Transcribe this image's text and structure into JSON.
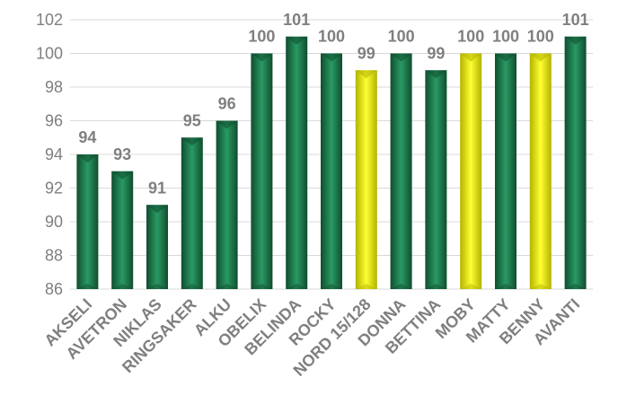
{
  "chart_data": {
    "type": "bar",
    "title": "",
    "xlabel": "",
    "ylabel": "",
    "categories": [
      "AKSELI",
      "AVETRON",
      "NIKLAS",
      "RINGSAKER",
      "ALKU",
      "OBELIX",
      "BELINDA",
      "ROCKY",
      "NORD 15/128",
      "DONNA",
      "BETTINA",
      "MOBY",
      "MATTY",
      "BENNY",
      "AVANTI"
    ],
    "values": [
      94,
      93,
      91,
      95,
      96,
      100,
      101,
      100,
      99,
      100,
      99,
      100,
      100,
      100,
      101
    ],
    "highlight": [
      false,
      false,
      false,
      false,
      false,
      false,
      false,
      false,
      true,
      false,
      false,
      true,
      false,
      true,
      false
    ],
    "ylim": [
      86,
      102
    ],
    "yticks": [
      86,
      88,
      90,
      92,
      94,
      96,
      98,
      100,
      102
    ],
    "grid": true,
    "legend": "none",
    "colors": {
      "bar": "#1e7a4e",
      "bar_dark": "#0f4d2f",
      "highlight": "#f2f21a",
      "highlight_dark": "#b3b300",
      "text": "#7f7f7f",
      "grid": "#d9d9d9"
    }
  }
}
